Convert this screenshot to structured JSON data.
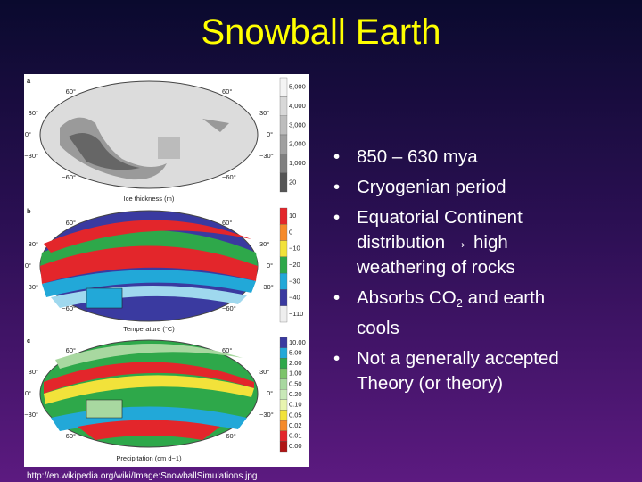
{
  "title": "Snowball Earth",
  "bullets": [
    {
      "text": "850 – 630 mya"
    },
    {
      "text": "Cryogenian period"
    },
    {
      "text": "Equatorial Continent distribution → high weathering of rocks"
    },
    {
      "text": "Absorbs CO",
      "sub": "2",
      "tail": " and earth cools"
    },
    {
      "text": "Not a generally accepted Theory (or theory)"
    }
  ],
  "source_url": "http://en.wikipedia.org/wiki/Image:SnowballSimulations.jpg",
  "figure": {
    "lat_labels": [
      "60°",
      "30°",
      "0°",
      "−30°",
      "−60°"
    ],
    "panels": [
      {
        "letter": "a",
        "caption": "Ice thickness (m)",
        "scale_labels": [
          "5,000",
          "4,000",
          "3,000",
          "2,000",
          "1,000",
          "20"
        ]
      },
      {
        "letter": "b",
        "caption": "Temperature (°C)",
        "scale_labels": [
          "10",
          "0",
          "−10",
          "−20",
          "−30",
          "−40",
          "−110"
        ]
      },
      {
        "letter": "c",
        "caption": "Precipitation (cm d−1)",
        "scale_labels": [
          "10.00",
          "5.00",
          "2.00",
          "1.00",
          "0.50",
          "0.20",
          "0.10",
          "0.05",
          "0.02",
          "0.01",
          "0.00"
        ]
      }
    ]
  }
}
